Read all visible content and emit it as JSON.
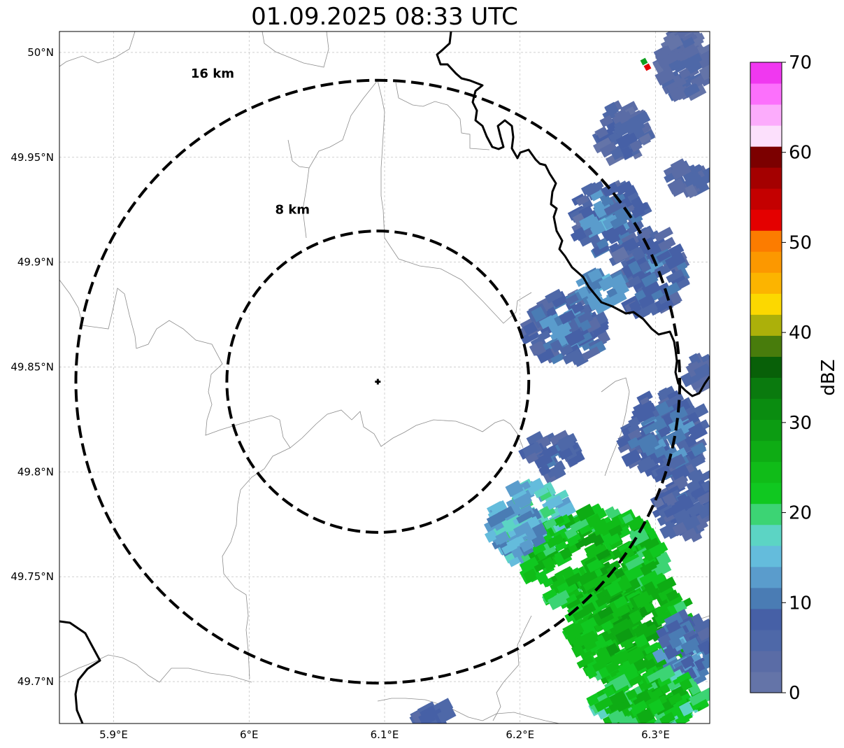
{
  "title": "01.09.2025 08:33 UTC",
  "map": {
    "lon_range": [
      5.86,
      6.34
    ],
    "lat_range": [
      49.68,
      50.01
    ],
    "lon_ticks": [
      {
        "value": 5.9,
        "label": "5.9°E"
      },
      {
        "value": 6.0,
        "label": "6°E"
      },
      {
        "value": 6.1,
        "label": "6.1°E"
      },
      {
        "value": 6.2,
        "label": "6.2°E"
      },
      {
        "value": 6.3,
        "label": "6.3°E"
      }
    ],
    "lat_ticks": [
      {
        "value": 50.0,
        "label": "50°N"
      },
      {
        "value": 49.95,
        "label": "49.95°N"
      },
      {
        "value": 49.9,
        "label": "49.9°N"
      },
      {
        "value": 49.85,
        "label": "49.85°N"
      },
      {
        "value": 49.8,
        "label": "49.8°N"
      },
      {
        "value": 49.75,
        "label": "49.75°N"
      },
      {
        "value": 49.7,
        "label": "49.7°N"
      }
    ],
    "grid": true,
    "center": {
      "lon": 6.095,
      "lat": 49.843
    },
    "rings": [
      {
        "radius_km": 8,
        "label": "8 km",
        "label_lon": 6.032,
        "label_lat": 49.923
      },
      {
        "radius_km": 16,
        "label": "16 km",
        "label_lon": 5.973,
        "label_lat": 49.988
      }
    ],
    "ring_color": "#000000"
  },
  "colorbar": {
    "unit": "dBZ",
    "min": 0,
    "max": 70,
    "step": 2.5,
    "colors": [
      "#6474a8",
      "#5a6ca6",
      "#4e68a8",
      "#4660a6",
      "#4a7cb4",
      "#5a9ccc",
      "#64bcdc",
      "#5cd4c4",
      "#3cd474",
      "#10c820",
      "#10bc18",
      "#0eac14",
      "#0c9c12",
      "#0a8c10",
      "#0a7a0e",
      "#086008",
      "#487c0c",
      "#acb00a",
      "#fcd800",
      "#fcb400",
      "#fc9800",
      "#fc7c00",
      "#e40000",
      "#c40000",
      "#a40000",
      "#7c0000",
      "#fce0fc",
      "#fcacfc",
      "#fc70fc",
      "#f038f0"
    ],
    "ticks": [
      0,
      10,
      20,
      30,
      40,
      50,
      60,
      70
    ]
  },
  "geography": {
    "border_color": "#000000",
    "river_color": "#8c8c8c"
  }
}
